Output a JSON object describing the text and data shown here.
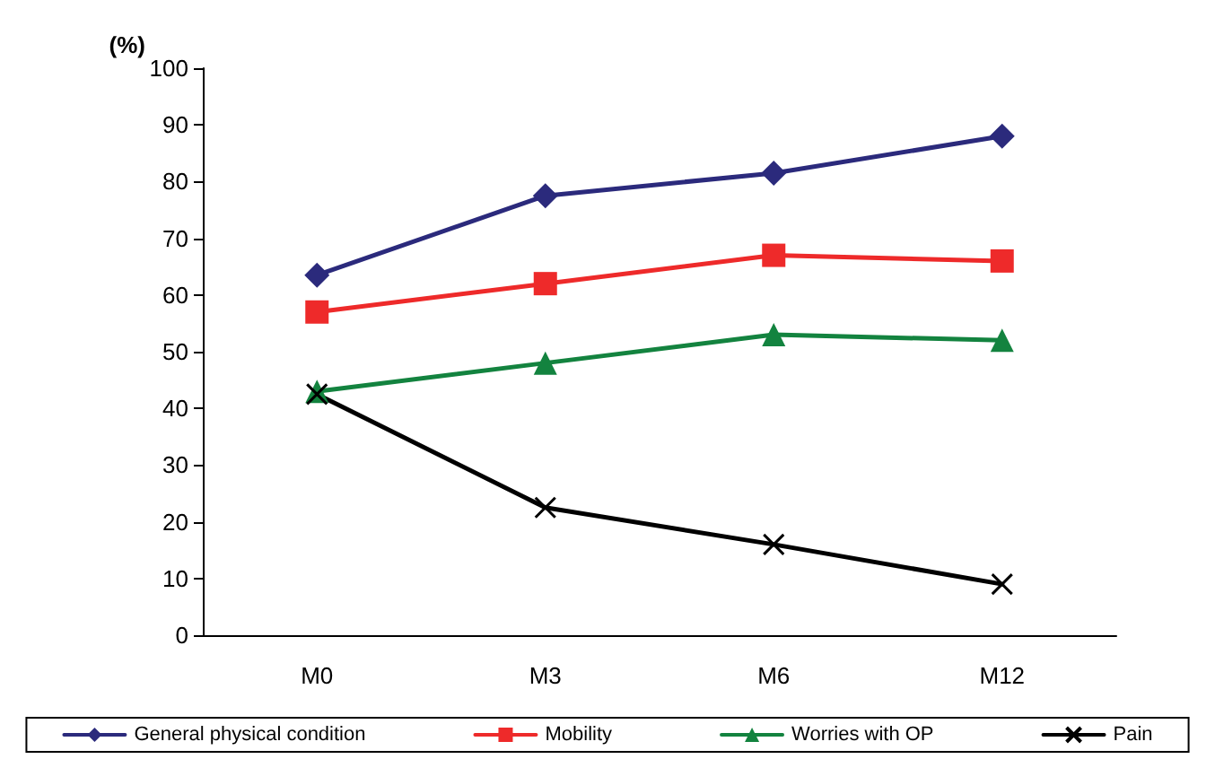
{
  "chart_data": {
    "type": "line",
    "ylabel": "(%)",
    "categories": [
      "M0",
      "M3",
      "M6",
      "M12"
    ],
    "series": [
      {
        "name": "General physical condition",
        "color": "#2b2a7c",
        "marker": "diamond",
        "values": [
          63.5,
          77.5,
          81.5,
          88
        ]
      },
      {
        "name": "Mobility",
        "color": "#ee2a2a",
        "marker": "square",
        "values": [
          57,
          62,
          67,
          66
        ]
      },
      {
        "name": "Worries with OP",
        "color": "#13833f",
        "marker": "triangle",
        "values": [
          43,
          48,
          53,
          52
        ]
      },
      {
        "name": "Pain",
        "color": "#000000",
        "marker": "cross",
        "values": [
          42.5,
          22.5,
          16,
          9
        ]
      }
    ],
    "ylim": [
      0,
      100
    ],
    "yticks": [
      0,
      10,
      20,
      30,
      40,
      50,
      60,
      70,
      80,
      90,
      100
    ],
    "grid": false,
    "legend": "bottom",
    "line_style": "solid"
  }
}
